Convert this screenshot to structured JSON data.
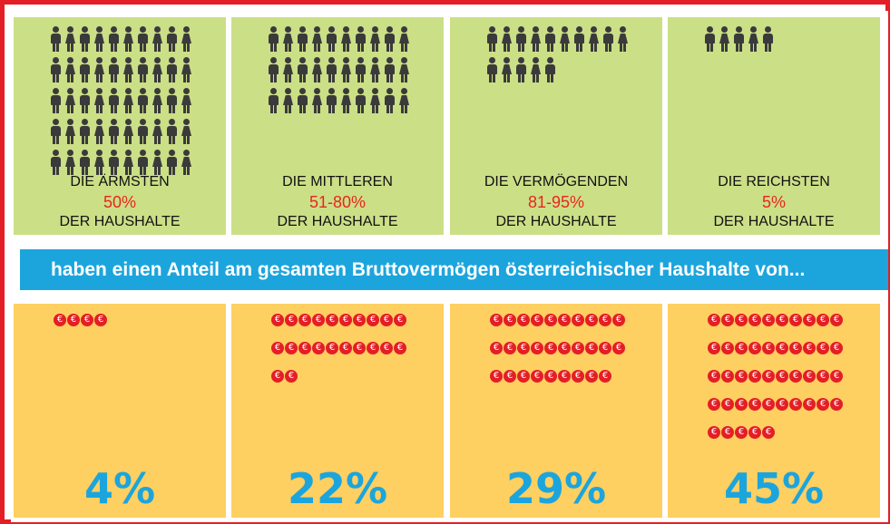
{
  "colors": {
    "frame": "#e41e26",
    "green": "#cbdf87",
    "yellow": "#fecf61",
    "banner": "#1ca5dd",
    "percent_text": "#1ca5dd",
    "coin": "#e41e26",
    "highlight_text": "#e8261f",
    "person": "#3a3a3a"
  },
  "icons": {
    "person": "person-icon",
    "coin": "euro-coin-icon"
  },
  "coin_symbol": "€",
  "banner_text": "haben einen Anteil am gesamten Bruttovermögen österreichischer Haushalte von...",
  "chart_data": {
    "type": "pictogram",
    "categories": [
      "DIE ÄRMSTEN",
      "DIE MITTLEREN",
      "DIE VERMÖGENDEN",
      "DIE REICHSTEN"
    ],
    "households_share": [
      "50%",
      "51-80%",
      "81-95%",
      "5%"
    ],
    "households_suffix": "DER HAUSHALTE",
    "people_icons": [
      50,
      30,
      15,
      5
    ],
    "wealth_share_values": [
      4,
      22,
      29,
      45
    ],
    "wealth_share_labels": [
      "4%",
      "22%",
      "29%",
      "45%"
    ],
    "coin_icons": [
      4,
      22,
      29,
      45
    ]
  }
}
